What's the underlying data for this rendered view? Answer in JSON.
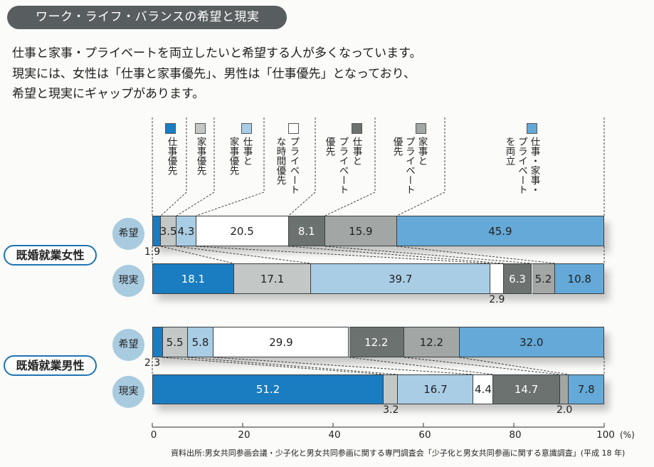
{
  "header": {
    "title": "ワーク・ライフ・バランスの希望と現実"
  },
  "intro": {
    "lines": [
      "仕事と家事・プライベートを両立したいと希望する人が多くなっています。",
      "現実には、女性は「仕事と家事優先」、男性は「仕事優先」となっており、",
      "希望と現実にギャップがあります。"
    ]
  },
  "chart_data": {
    "type": "bar",
    "orientation": "horizontal-stacked-100-percent",
    "title": "ワーク・ライフ・バランスの希望と現実",
    "legend_placement": "top",
    "legend": [
      {
        "label": "仕事優先",
        "display": "仕事優先",
        "color": "#1a7cc1"
      },
      {
        "label": "家事優先",
        "display": "家事優先",
        "color": "#c3c8c6"
      },
      {
        "label": "仕事と家事優先",
        "display": "仕事と\n家事優先",
        "color": "#aacde6"
      },
      {
        "label": "プライベートな時間優先",
        "display": "プライベート\nな時間優先",
        "color": "#ffffff"
      },
      {
        "label": "仕事とプライベート優先",
        "display": "仕事と\nプライベート\n優先",
        "color": "#6b7270"
      },
      {
        "label": "家事とプライベート優先",
        "display": "家事と\nプライベート\n優先",
        "color": "#a2a7a5"
      },
      {
        "label": "仕事・家事・プライベートを両立",
        "display": "仕事・家事・\nプライベート\nを両立",
        "color": "#64a9d7"
      }
    ],
    "groups": [
      {
        "name": "既婚就業女性",
        "rows": [
          {
            "name": "希望",
            "values": [
              1.9,
              3.5,
              4.3,
              20.5,
              8.1,
              15.9,
              45.9
            ]
          },
          {
            "name": "現実",
            "values": [
              18.1,
              17.1,
              39.7,
              2.9,
              6.3,
              5.2,
              10.8
            ]
          }
        ]
      },
      {
        "name": "既婚就業男性",
        "rows": [
          {
            "name": "希望",
            "values": [
              2.3,
              5.5,
              5.8,
              29.9,
              12.2,
              12.2,
              32.0
            ]
          },
          {
            "name": "現実",
            "values": [
              51.2,
              3.2,
              16.7,
              4.4,
              14.7,
              2.0,
              7.8
            ]
          }
        ]
      }
    ],
    "xlim": [
      0,
      100
    ],
    "xticks": [
      0,
      20,
      40,
      60,
      80,
      100
    ],
    "xtick_labels": [
      "0",
      "20",
      "40",
      "60",
      "80",
      "100"
    ],
    "xlabel": "(%)",
    "ylabel": "",
    "grid": false
  },
  "source": "資料出所:男女共同参画会議・少子化と男女共同参画に関する専門調査会「少子化と男女共同参画に関する意識調査」(平成 18 年)"
}
